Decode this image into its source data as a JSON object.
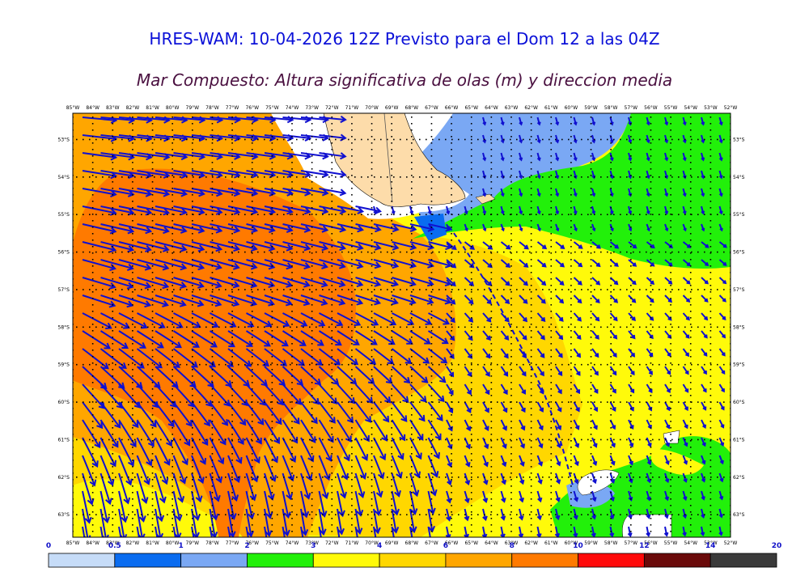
{
  "header": {
    "title": "HRES-WAM: 10-04-2026 12Z Previsto para el Dom 12 a las 04Z",
    "subtitle": "Mar Compuesto: Altura significativa de olas (m) y direccion media"
  },
  "map": {
    "lon_labels": [
      "85°W",
      "84°W",
      "83°W",
      "82°W",
      "81°W",
      "80°W",
      "79°W",
      "78°W",
      "77°W",
      "76°W",
      "75°W",
      "74°W",
      "73°W",
      "72°W",
      "71°W",
      "70°W",
      "69°W",
      "68°W",
      "67°W",
      "66°W",
      "65°W",
      "64°W",
      "63°W",
      "62°W",
      "61°W",
      "60°W",
      "59°W",
      "58°W",
      "57°W",
      "56°W",
      "55°W",
      "54°W",
      "53°W",
      "52°W"
    ],
    "lat_labels": [
      "53°S",
      "54°S",
      "55°S",
      "56°S",
      "57°S",
      "58°S",
      "59°S",
      "60°S",
      "61°S",
      "62°S",
      "63°S"
    ],
    "lon_range": [
      -85,
      -52
    ],
    "lat_range": [
      -52.3,
      -63.6
    ]
  },
  "colorbar": {
    "ticks": [
      "0",
      "0.5",
      "1",
      "2",
      "3",
      "4",
      "6",
      "8",
      "10",
      "12",
      "14",
      "20"
    ],
    "colors": [
      "#c6dcf8",
      "#0a6cf0",
      "#7aa8f4",
      "#22f00a",
      "#fffa0a",
      "#ffd700",
      "#ffa600",
      "#ff7a00",
      "#ff0a0a",
      "#6a0a0a",
      "#3a3a3a"
    ]
  },
  "colors": {
    "arrow": "#1010d0",
    "land": "#fddcaa",
    "ice": "#ffffff"
  }
}
